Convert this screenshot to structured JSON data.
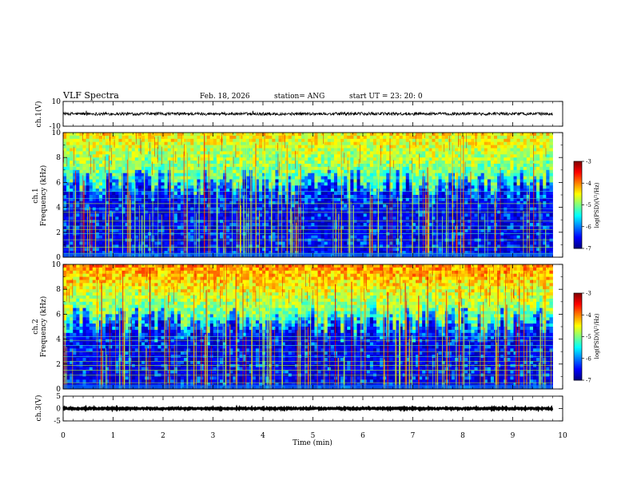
{
  "header": {
    "title": "VLF Spectra",
    "date": "Feb. 18, 2026",
    "station": "station= ANG",
    "start_ut": "start  UT =   23: 20: 0"
  },
  "chart_data": [
    {
      "type": "line",
      "name": "ch1-waveform",
      "ylabel": "ch.1(V)",
      "ylim": [
        -10,
        10
      ],
      "yticks": [
        "10",
        "-10"
      ],
      "xlim": [
        0,
        10
      ],
      "baseline": 0,
      "noise_amplitude": 1.2
    },
    {
      "type": "heatmap",
      "name": "ch1-spectrogram",
      "ylabel_line1": "ch.1",
      "ylabel_line2": "Frequency (kHz)",
      "xlim": [
        0,
        10
      ],
      "ylim": [
        0,
        10
      ],
      "yticks": [
        "0",
        "2",
        "4",
        "6",
        "8",
        "10"
      ],
      "data_extent_min": 9.8,
      "colorbar": {
        "label": "log(PSD)(V²/Hz)",
        "range": [
          -7,
          -3
        ],
        "ticks": [
          "-3",
          "-4",
          "-5",
          "-6",
          "-7"
        ]
      },
      "hiss_top_khz": 6.0,
      "intensity": 0.55,
      "lines_khz": [
        0.3,
        0.8,
        1.4,
        1.9,
        2.2,
        2.5,
        2.9,
        3.6,
        3.9,
        4.3,
        4.7,
        5.3
      ]
    },
    {
      "type": "heatmap",
      "name": "ch2-spectrogram",
      "ylabel_line1": "ch.2",
      "ylabel_line2": "Frequency (kHz)",
      "xlim": [
        0,
        10
      ],
      "ylim": [
        0,
        10
      ],
      "yticks": [
        "0",
        "2",
        "4",
        "6",
        "8",
        "10"
      ],
      "data_extent_min": 9.8,
      "colorbar": {
        "label": "log(PSD)(V²/Hz)",
        "range": [
          -7,
          -3
        ],
        "ticks": [
          "-3",
          "-4",
          "-5",
          "-6",
          "-7"
        ]
      },
      "hiss_top_khz": 5.5,
      "intensity": 0.85,
      "lines_khz": [
        0.5,
        1.1,
        1.5,
        1.9,
        2.2,
        2.6,
        3.0,
        3.5,
        3.9,
        4.2
      ]
    },
    {
      "type": "line",
      "name": "ch3-waveform",
      "ylabel": "ch.3(V)",
      "ylim": [
        -5,
        5
      ],
      "yticks": [
        "5",
        "0",
        "-5"
      ],
      "xlim": [
        0,
        10
      ],
      "xticks": [
        "0",
        "1",
        "2",
        "3",
        "4",
        "5",
        "6",
        "7",
        "8",
        "9",
        "10"
      ],
      "xlabel": "Time (min)",
      "baseline": 0,
      "noise_amplitude": 0.25
    }
  ]
}
